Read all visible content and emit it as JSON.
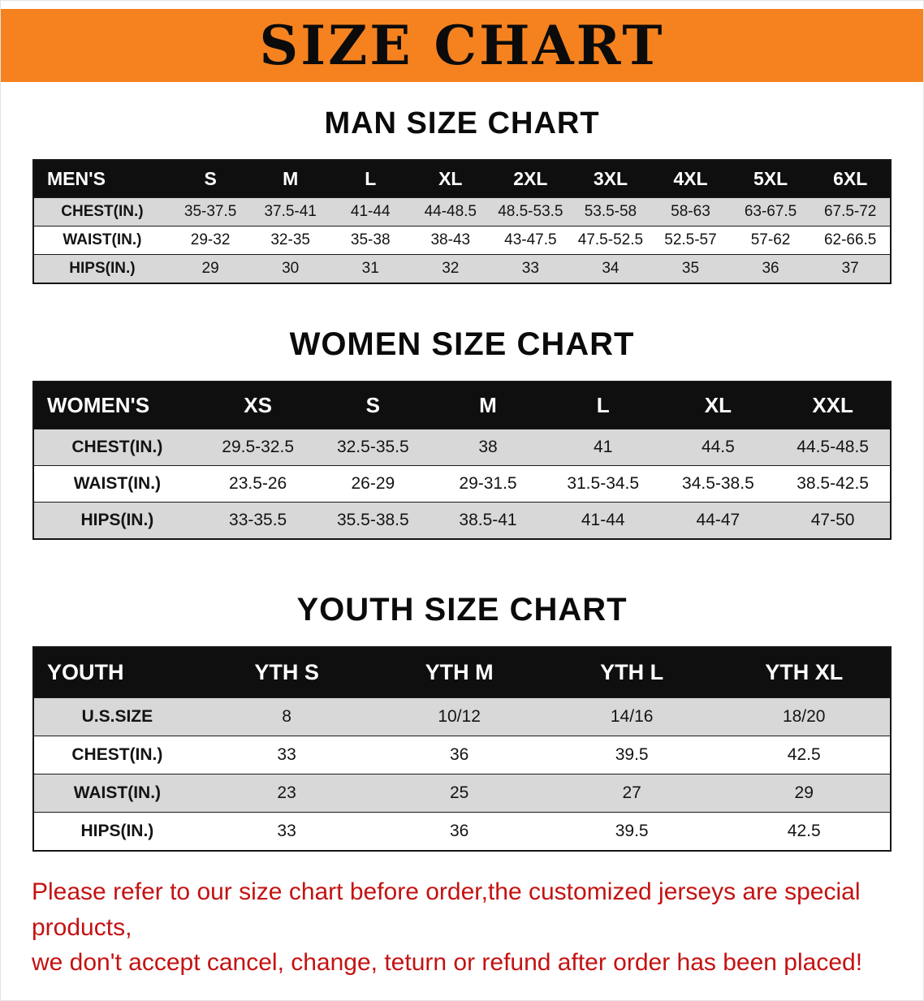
{
  "banner": {
    "title": "SIZE CHART"
  },
  "colors": {
    "banner_bg": "#f5821f",
    "table_header_bg": "#0f0f0f",
    "row_shade": "#d8d8d8",
    "note_red": "#c41212"
  },
  "chart_data": [
    {
      "type": "table",
      "title": "MAN SIZE CHART",
      "columns": [
        "MEN'S",
        "S",
        "M",
        "L",
        "XL",
        "2XL",
        "3XL",
        "4XL",
        "5XL",
        "6XL"
      ],
      "rows": [
        [
          "CHEST(IN.)",
          "35-37.5",
          "37.5-41",
          "41-44",
          "44-48.5",
          "48.5-53.5",
          "53.5-58",
          "58-63",
          "63-67.5",
          "67.5-72"
        ],
        [
          "WAIST(IN.)",
          "29-32",
          "32-35",
          "35-38",
          "38-43",
          "43-47.5",
          "47.5-52.5",
          "52.5-57",
          "57-62",
          "62-66.5"
        ],
        [
          "HIPS(IN.)",
          "29",
          "30",
          "31",
          "32",
          "33",
          "34",
          "35",
          "36",
          "37"
        ]
      ]
    },
    {
      "type": "table",
      "title": "WOMEN SIZE CHART",
      "columns": [
        "WOMEN'S",
        "XS",
        "S",
        "M",
        "L",
        "XL",
        "XXL"
      ],
      "rows": [
        [
          "CHEST(IN.)",
          "29.5-32.5",
          "32.5-35.5",
          "38",
          "41",
          "44.5",
          "44.5-48.5"
        ],
        [
          "WAIST(IN.)",
          "23.5-26",
          "26-29",
          "29-31.5",
          "31.5-34.5",
          "34.5-38.5",
          "38.5-42.5"
        ],
        [
          "HIPS(IN.)",
          "33-35.5",
          "35.5-38.5",
          "38.5-41",
          "41-44",
          "44-47",
          "47-50"
        ]
      ]
    },
    {
      "type": "table",
      "title": "YOUTH SIZE CHART",
      "columns": [
        "YOUTH",
        "YTH S",
        "YTH M",
        "YTH L",
        "YTH XL"
      ],
      "rows": [
        [
          "U.S.SIZE",
          "8",
          "10/12",
          "14/16",
          "18/20"
        ],
        [
          "CHEST(IN.)",
          "33",
          "36",
          "39.5",
          "42.5"
        ],
        [
          "WAIST(IN.)",
          "23",
          "25",
          "27",
          "29"
        ],
        [
          "HIPS(IN.)",
          "33",
          "36",
          "39.5",
          "42.5"
        ]
      ]
    }
  ],
  "footer": {
    "line1": "Please refer to our size chart before order,the customized jerseys are special products,",
    "line2": "we don't accept cancel, change, teturn or refund after order has been placed!"
  }
}
